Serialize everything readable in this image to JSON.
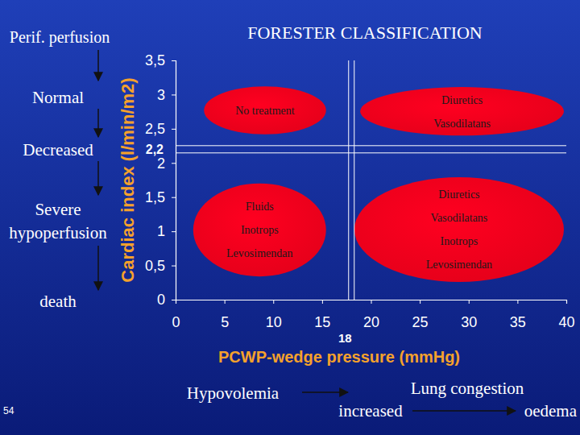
{
  "chart_data": {
    "type": "quadrant",
    "title": "FORESTER CLASSIFICATION",
    "x_label": "PCWP-wedge pressure (mmHg)",
    "y_label": "Cardiac index (l/min/m2)",
    "xlim": [
      0,
      40
    ],
    "ylim": [
      0,
      3.5
    ],
    "xticks": [
      0,
      5,
      10,
      15,
      20,
      25,
      30,
      35,
      40
    ],
    "yticks": [
      0,
      {
        "value": 0.5,
        "label": "0,5"
      },
      1,
      {
        "value": 1.5,
        "label": "1,5"
      },
      2,
      {
        "value": 2.5,
        "label": "2,5"
      },
      3,
      {
        "value": 3.5,
        "label": "3,5"
      }
    ],
    "color": "#e5001a",
    "thresholds": {
      "x": {
        "value": 18,
        "label": "18"
      },
      "y": {
        "value": 2.2,
        "label": "2,2"
      }
    },
    "regions": [
      {
        "x": [
          2.9,
          15.4
        ],
        "y": [
          2.42,
          3.12
        ],
        "labels": [
          "No treatment"
        ]
      },
      {
        "x": [
          18.9,
          39.75
        ],
        "y": [
          2.4,
          3.11
        ],
        "labels": [
          "Diuretics",
          "Vasodilatans"
        ]
      },
      {
        "x": [
          1.8,
          15.4
        ],
        "y": [
          0.34,
          1.7
        ],
        "labels": [
          "Fluids",
          "Inotrops",
          "Levosimendan"
        ]
      },
      {
        "x": [
          18.3,
          39.75
        ],
        "y": [
          0.26,
          1.79
        ],
        "labels": [
          "Diuretics",
          "Vasodilatans",
          "Inotrops",
          "Levosimendan"
        ]
      }
    ],
    "perfusion_axis": {
      "title": "Perif. perfusion",
      "stages": [
        [
          "Normal"
        ],
        [
          "Decreased"
        ],
        [
          "Severe",
          "hypoperfusion"
        ],
        [
          "death"
        ]
      ]
    },
    "pressure_axis": {
      "start": "Hypovolemia",
      "label": "Lung congestion",
      "from": "increased",
      "to": "oedema"
    },
    "slide_number": "54"
  }
}
